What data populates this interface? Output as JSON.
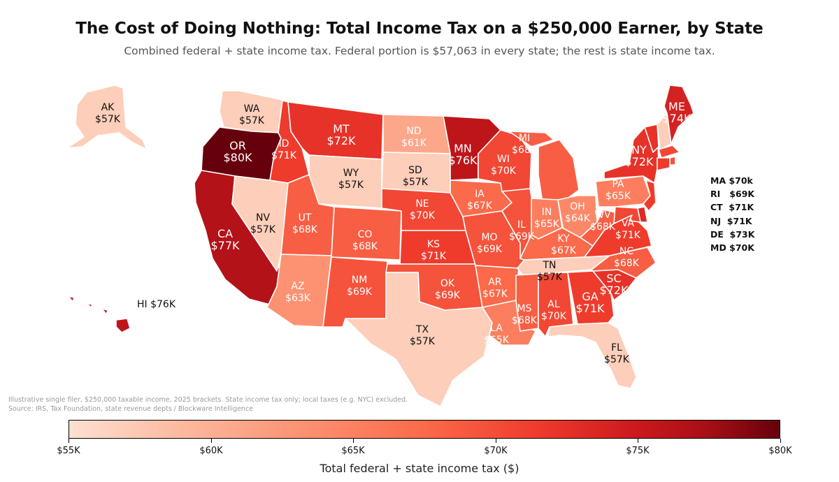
{
  "title": "The Cost of Doing Nothing: Total Income Tax on a $250,000 Earner, by State",
  "subtitle": "Combined federal + state income tax. Federal portion is $57,063 in every state; the rest is state income tax.",
  "colors": {
    "scale_low": "#fde0d2",
    "scale_high": "#67000d"
  },
  "states": [
    {
      "abbr": "WA",
      "value": 57,
      "label": "$57K"
    },
    {
      "abbr": "OR",
      "value": 80,
      "label": "$80K"
    },
    {
      "abbr": "CA",
      "value": 77,
      "label": "$77K"
    },
    {
      "abbr": "NV",
      "value": 57,
      "label": "$57K"
    },
    {
      "abbr": "ID",
      "value": 71,
      "label": "$71K"
    },
    {
      "abbr": "MT",
      "value": 72,
      "label": "$72K"
    },
    {
      "abbr": "WY",
      "value": 57,
      "label": "$57K"
    },
    {
      "abbr": "UT",
      "value": 68,
      "label": "$68K"
    },
    {
      "abbr": "AZ",
      "value": 63,
      "label": "$63K"
    },
    {
      "abbr": "CO",
      "value": 68,
      "label": "$68K"
    },
    {
      "abbr": "NM",
      "value": 69,
      "label": "$69K"
    },
    {
      "abbr": "ND",
      "value": 61,
      "label": "$61K"
    },
    {
      "abbr": "SD",
      "value": 57,
      "label": "$57K"
    },
    {
      "abbr": "NE",
      "value": 70,
      "label": "$70K"
    },
    {
      "abbr": "KS",
      "value": 71,
      "label": "$71K"
    },
    {
      "abbr": "OK",
      "value": 69,
      "label": "$69K"
    },
    {
      "abbr": "TX",
      "value": 57,
      "label": "$57K"
    },
    {
      "abbr": "MN",
      "value": 76,
      "label": "$76K"
    },
    {
      "abbr": "IA",
      "value": 67,
      "label": "$67K"
    },
    {
      "abbr": "MO",
      "value": 69,
      "label": "$69K"
    },
    {
      "abbr": "AR",
      "value": 67,
      "label": "$67K"
    },
    {
      "abbr": "LA",
      "value": 65,
      "label": "$65K"
    },
    {
      "abbr": "WI",
      "value": 70,
      "label": "$70K"
    },
    {
      "abbr": "IL",
      "value": 69,
      "label": "$69K"
    },
    {
      "abbr": "MI",
      "value": 68,
      "label": "$68K"
    },
    {
      "abbr": "IN",
      "value": 65,
      "label": "$65K"
    },
    {
      "abbr": "OH",
      "value": 64,
      "label": "$64K"
    },
    {
      "abbr": "KY",
      "value": 67,
      "label": "$67K"
    },
    {
      "abbr": "TN",
      "value": 57,
      "label": "$57K"
    },
    {
      "abbr": "MS",
      "value": 68,
      "label": "$68K"
    },
    {
      "abbr": "AL",
      "value": 70,
      "label": "$70K"
    },
    {
      "abbr": "GA",
      "value": 71,
      "label": "$71K"
    },
    {
      "abbr": "FL",
      "value": 57,
      "label": "$57K"
    },
    {
      "abbr": "SC",
      "value": 72,
      "label": "$72K"
    },
    {
      "abbr": "NC",
      "value": 68,
      "label": "$68K"
    },
    {
      "abbr": "VA",
      "value": 71,
      "label": "$71K"
    },
    {
      "abbr": "WV",
      "value": 68,
      "label": "$68K"
    },
    {
      "abbr": "PA",
      "value": 65,
      "label": "$65K"
    },
    {
      "abbr": "NY",
      "value": 72,
      "label": "$72K"
    },
    {
      "abbr": "VT",
      "value": 72,
      "label": ""
    },
    {
      "abbr": "NH",
      "value": 57,
      "label": ""
    },
    {
      "abbr": "ME",
      "value": 74,
      "label": "$74K"
    },
    {
      "abbr": "MA",
      "value": 70,
      "label": "$70k"
    },
    {
      "abbr": "RI",
      "value": 69,
      "label": "$69K"
    },
    {
      "abbr": "CT",
      "value": 71,
      "label": "$71K"
    },
    {
      "abbr": "NJ",
      "value": 71,
      "label": "$71K"
    },
    {
      "abbr": "DE",
      "value": 73,
      "label": "$73K"
    },
    {
      "abbr": "MD",
      "value": 70,
      "label": "$70K"
    },
    {
      "abbr": "AK",
      "value": 57,
      "label": "$57K"
    },
    {
      "abbr": "HI",
      "value": 76,
      "label": "$76K"
    }
  ],
  "callouts": [
    {
      "abbr": "MA",
      "text": "MA $70k"
    },
    {
      "abbr": "RI",
      "text": "RI   $69K"
    },
    {
      "abbr": "CT",
      "text": "CT  $71K"
    },
    {
      "abbr": "NJ",
      "text": "NJ  $71K"
    },
    {
      "abbr": "DE",
      "text": "DE  $73K"
    },
    {
      "abbr": "MD",
      "text": "MD $70K"
    }
  ],
  "hawaii_label": "HI  $76K",
  "footnote": {
    "line1": "Illustrative single filer, $250,000 taxable income, 2025 brackets. State income tax only; local taxes (e.g. NYC) excluded.",
    "line2": "Source: IRS, Tax Foundation, state revenue depts / Blockware Intelligence"
  },
  "colorbar": {
    "min": 55,
    "max": 80,
    "ticks": [
      {
        "value": 55,
        "label": "$55K"
      },
      {
        "value": 60,
        "label": "$60K"
      },
      {
        "value": 65,
        "label": "$65K"
      },
      {
        "value": 70,
        "label": "$70K"
      },
      {
        "value": 75,
        "label": "$75K"
      },
      {
        "value": 80,
        "label": "$80K"
      }
    ],
    "title": "Total federal + state income tax ($)"
  }
}
